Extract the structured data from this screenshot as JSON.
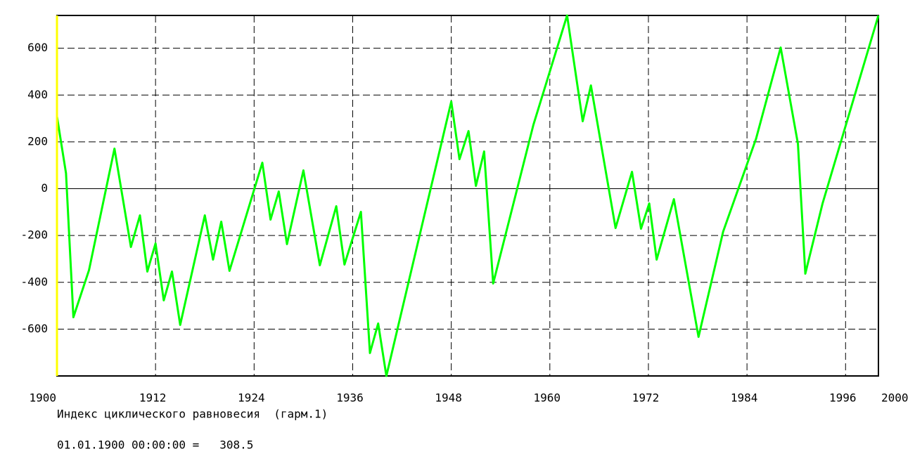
{
  "chart_data": {
    "type": "line",
    "title": "Индекс циклического равновесия  (гарм.1)",
    "cursor_label": "01.01.1900 00:00:00 =   308.5",
    "cursor_color": "#ffff00",
    "grid": true,
    "x": [
      1900,
      1901.1,
      1902,
      1903.9,
      1907,
      1909,
      1910.1,
      1911,
      1912,
      1913,
      1914,
      1915,
      1918,
      1919,
      1920,
      1921,
      1925,
      1926,
      1927,
      1928,
      1930,
      1932,
      1934,
      1935,
      1937,
      1938.1,
      1939.1,
      1940.1,
      1948,
      1949,
      1950.1,
      1951,
      1952,
      1953.1,
      1958,
      1962.1,
      1964,
      1965,
      1968,
      1970,
      1971.1,
      1972.1,
      1973,
      1975.1,
      1978.1,
      1981.1,
      1985.1,
      1988.1,
      1990.2,
      1991.1,
      1993.2,
      2000
    ],
    "series": [
      {
        "color": "#00ff00",
        "values": [
          308.5,
          66,
          -549,
          -348,
          171,
          -249,
          -114,
          -354,
          -234,
          -477,
          -354,
          -582,
          -114,
          -303,
          -141,
          -351,
          111,
          -132,
          -12,
          -237,
          78,
          -327,
          -75,
          -324,
          -99,
          -702,
          -576,
          -800,
          372,
          126,
          246,
          12,
          159,
          -405,
          273,
          740,
          288,
          441,
          -168,
          72,
          -171,
          -63,
          -303,
          -45,
          -633,
          -183,
          213,
          603,
          192,
          -363,
          -63,
          740
        ]
      }
    ],
    "xlim": [
      1900,
      2000
    ],
    "xticks": [
      1900,
      1912,
      1924,
      1936,
      1948,
      1960,
      1972,
      1984,
      1996,
      2000
    ],
    "ylim": [
      -800,
      740
    ],
    "yticks": [
      -600,
      -400,
      -200,
      0,
      200,
      400,
      600
    ]
  }
}
